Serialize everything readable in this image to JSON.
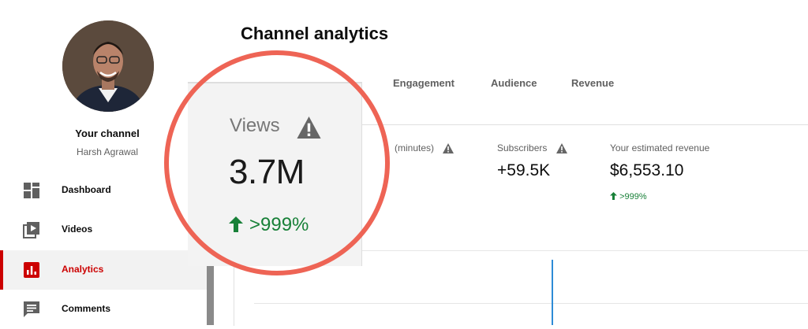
{
  "sidebar": {
    "channel_title": "Your channel",
    "channel_name": "Harsh Agrawal",
    "items": [
      {
        "label": "Dashboard",
        "icon": "dashboard-icon"
      },
      {
        "label": "Videos",
        "icon": "videos-icon"
      },
      {
        "label": "Analytics",
        "icon": "analytics-icon",
        "active": true
      },
      {
        "label": "Comments",
        "icon": "comments-icon"
      }
    ]
  },
  "main": {
    "title": "Channel analytics",
    "tabs": [
      "Engagement",
      "Audience",
      "Revenue"
    ],
    "metrics": [
      {
        "label": "(minutes)",
        "value": "",
        "change": ""
      },
      {
        "label": "Subscribers",
        "value": "+59.5K",
        "change": ""
      },
      {
        "label": "Your estimated revenue",
        "value": "$6,553.10",
        "change": ">999%"
      }
    ]
  },
  "zoom": {
    "label": "Views",
    "value": "3.7M",
    "change": ">999%"
  },
  "colors": {
    "accent_red": "#cc0000",
    "positive_green": "#188038",
    "highlight_circle": "#ee6455",
    "chart_line": "#2e8bd6"
  }
}
